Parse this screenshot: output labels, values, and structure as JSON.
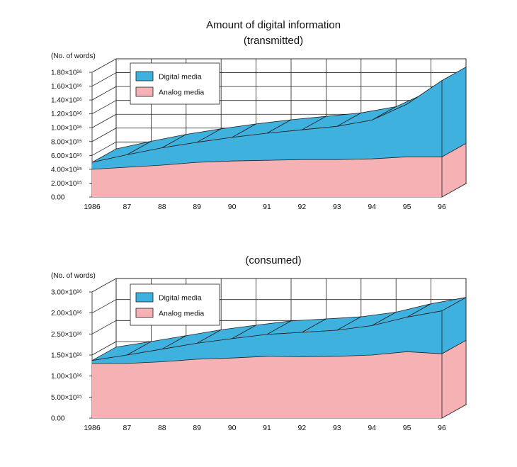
{
  "colors": {
    "digital": "#3fb1de",
    "analog": "#f6b1b4",
    "grid": "#222222"
  },
  "chart_data": [
    {
      "type": "area",
      "stacked": true,
      "title": "Amount of digital information",
      "subtitle": "(transmitted)",
      "ylabel": "(No. of words)",
      "categories": [
        "1986",
        "87",
        "88",
        "89",
        "90",
        "91",
        "92",
        "93",
        "94",
        "95",
        "96"
      ],
      "y_tick_labels": [
        "0.00",
        "2.00×10¹⁵",
        "4.00×10¹⁵",
        "6.00×10¹⁵",
        "8.00×10¹⁵",
        "1.00×10¹⁶",
        "1.20×10¹⁶",
        "1.40×10¹⁶",
        "1.60×10¹⁶",
        "1.80×10¹⁶"
      ],
      "ylim": [
        0,
        18000000000000000
      ],
      "grid": true,
      "legend_position": "top-left",
      "series": [
        {
          "name": "Analog media",
          "color_key": "analog",
          "values": [
            4000000000000000,
            4300000000000000,
            4600000000000000,
            5000000000000000,
            5200000000000000,
            5300000000000000,
            5400000000000000,
            5400000000000000,
            5500000000000000,
            5800000000000000,
            5800000000000000
          ]
        },
        {
          "name": "Digital media",
          "color_key": "digital",
          "values": [
            1000000000000000,
            1800000000000000,
            2500000000000000,
            2900000000000000,
            3400000000000000,
            3900000000000000,
            4300000000000000,
            4800000000000000,
            5600000000000000,
            7600000000000000,
            11000000000000000
          ]
        }
      ]
    },
    {
      "type": "area",
      "stacked": true,
      "title": "",
      "subtitle": "(consumed)",
      "ylabel": "(No. of words)",
      "categories": [
        "1986",
        "87",
        "88",
        "89",
        "90",
        "91",
        "92",
        "93",
        "94",
        "95",
        "96"
      ],
      "y_tick_labels": [
        "0.00",
        "5.00×10¹⁵",
        "1.00×10¹⁶",
        "1.50×10¹⁶",
        "2.50×10¹⁶",
        "2.00×10¹⁶",
        "3.00×10¹⁶"
      ],
      "ylim": [
        0,
        30000000000000000
      ],
      "grid": true,
      "legend_position": "top-left",
      "series": [
        {
          "name": "Analog media",
          "color_key": "analog",
          "values": [
            13000000000000000,
            13000000000000000,
            13400000000000000,
            14000000000000000,
            14300000000000000,
            14700000000000000,
            14600000000000000,
            14700000000000000,
            15000000000000000,
            15800000000000000,
            15300000000000000
          ]
        },
        {
          "name": "Digital media",
          "color_key": "digital",
          "values": [
            700000000000000,
            2000000000000000,
            3000000000000000,
            3800000000000000,
            4600000000000000,
            5200000000000000,
            5800000000000000,
            6200000000000000,
            7000000000000000,
            8200000000000000,
            10200000000000000
          ]
        }
      ]
    }
  ]
}
